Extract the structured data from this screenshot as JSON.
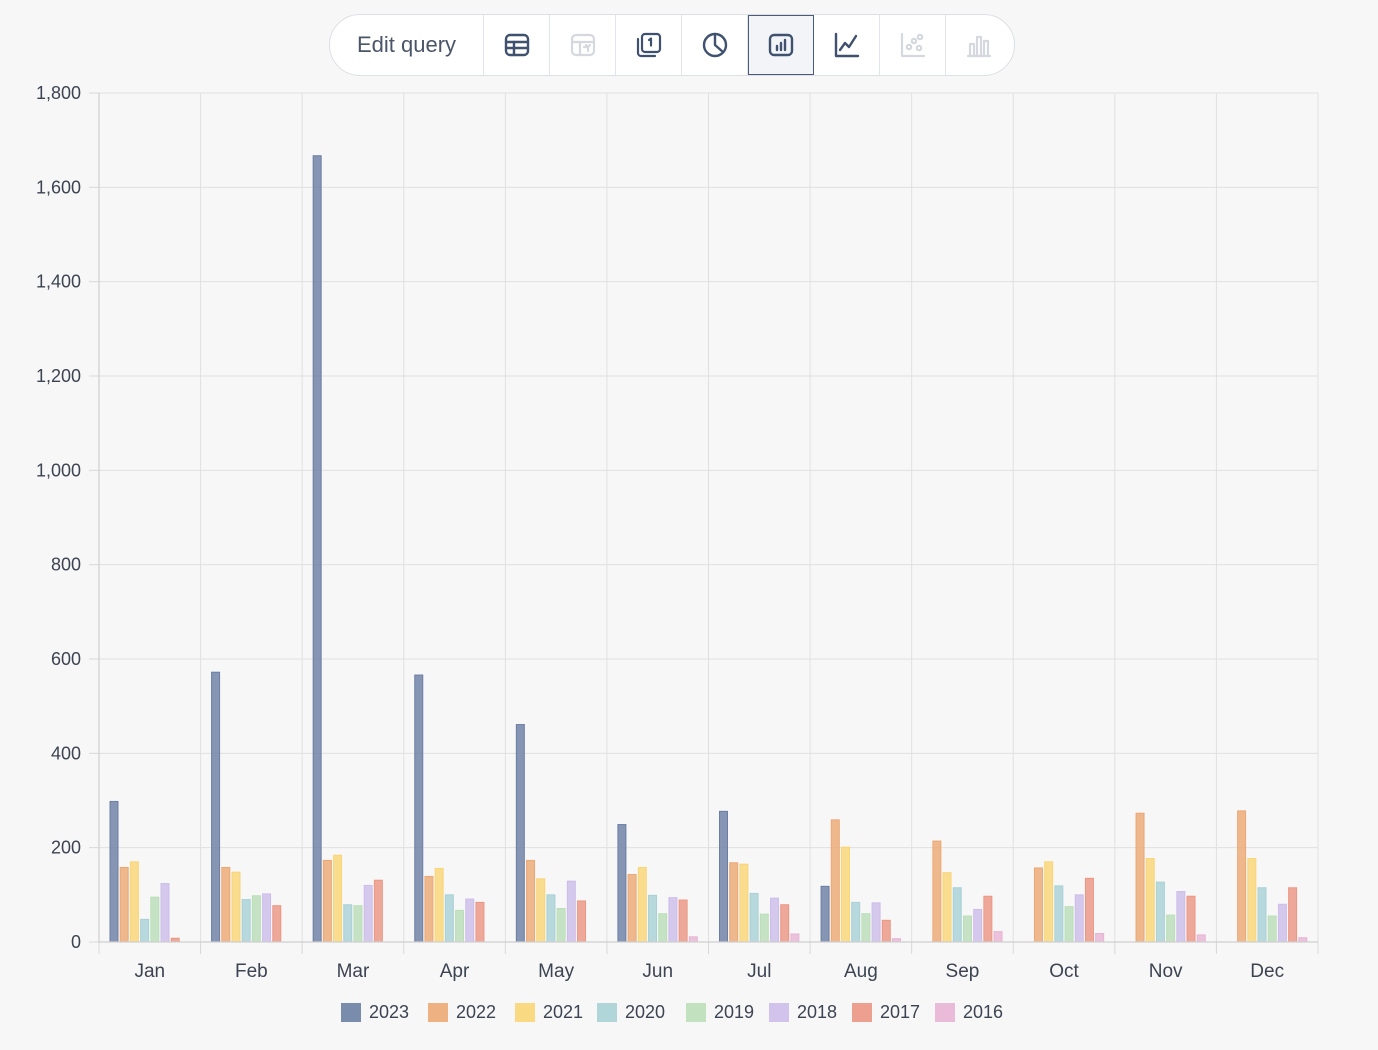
{
  "toolbar": {
    "edit_label": "Edit query",
    "buttons": [
      {
        "icon": "table-icon",
        "enabled": true,
        "active": false
      },
      {
        "icon": "pivot-table-icon",
        "enabled": false,
        "active": false
      },
      {
        "icon": "number-card-icon",
        "enabled": true,
        "active": false
      },
      {
        "icon": "pie-chart-icon",
        "enabled": true,
        "active": false
      },
      {
        "icon": "bar-chart-icon",
        "enabled": true,
        "active": true
      },
      {
        "icon": "line-chart-icon",
        "enabled": true,
        "active": false
      },
      {
        "icon": "scatter-chart-icon",
        "enabled": false,
        "active": false
      },
      {
        "icon": "histogram-icon",
        "enabled": false,
        "active": false
      }
    ]
  },
  "chart_data": {
    "type": "bar",
    "title": "",
    "xlabel": "",
    "ylabel": "",
    "ylim": [
      0,
      1800
    ],
    "yticks": [
      0,
      200,
      400,
      600,
      800,
      1000,
      1200,
      1400,
      1600,
      1800
    ],
    "ytick_labels": [
      "0",
      "200",
      "400",
      "600",
      "800",
      "1,000",
      "1,200",
      "1,400",
      "1,600",
      "1,800"
    ],
    "grid": true,
    "legend_position": "bottom",
    "categories": [
      "Jan",
      "Feb",
      "Mar",
      "Apr",
      "May",
      "Jun",
      "Jul",
      "Aug",
      "Sep",
      "Oct",
      "Nov",
      "Dec"
    ],
    "series": [
      {
        "name": "2023",
        "color": "#6b7fa3",
        "values": [
          298,
          572,
          1667,
          566,
          461,
          249,
          277,
          118,
          0,
          0,
          0,
          0
        ]
      },
      {
        "name": "2022",
        "color": "#eca874",
        "values": [
          158,
          158,
          173,
          139,
          173,
          143,
          168,
          259,
          214,
          157,
          273,
          278
        ]
      },
      {
        "name": "2021",
        "color": "#f9d576",
        "values": [
          170,
          148,
          184,
          156,
          134,
          158,
          165,
          201,
          147,
          170,
          177,
          177
        ]
      },
      {
        "name": "2020",
        "color": "#a8d1d6",
        "values": [
          48,
          90,
          79,
          100,
          100,
          99,
          103,
          84,
          115,
          119,
          127,
          115
        ]
      },
      {
        "name": "2019",
        "color": "#badeb8",
        "values": [
          95,
          98,
          77,
          67,
          71,
          60,
          59,
          60,
          55,
          75,
          57,
          55
        ]
      },
      {
        "name": "2018",
        "color": "#cdbdea",
        "values": [
          124,
          102,
          120,
          91,
          129,
          94,
          93,
          83,
          69,
          100,
          107,
          80
        ]
      },
      {
        "name": "2017",
        "color": "#ec9684",
        "values": [
          8,
          77,
          131,
          84,
          87,
          89,
          79,
          46,
          97,
          135,
          97,
          115
        ]
      },
      {
        "name": "2016",
        "color": "#e8b4d4",
        "values": [
          0,
          0,
          0,
          0,
          0,
          11,
          17,
          7,
          22,
          18,
          15,
          9
        ]
      }
    ]
  }
}
